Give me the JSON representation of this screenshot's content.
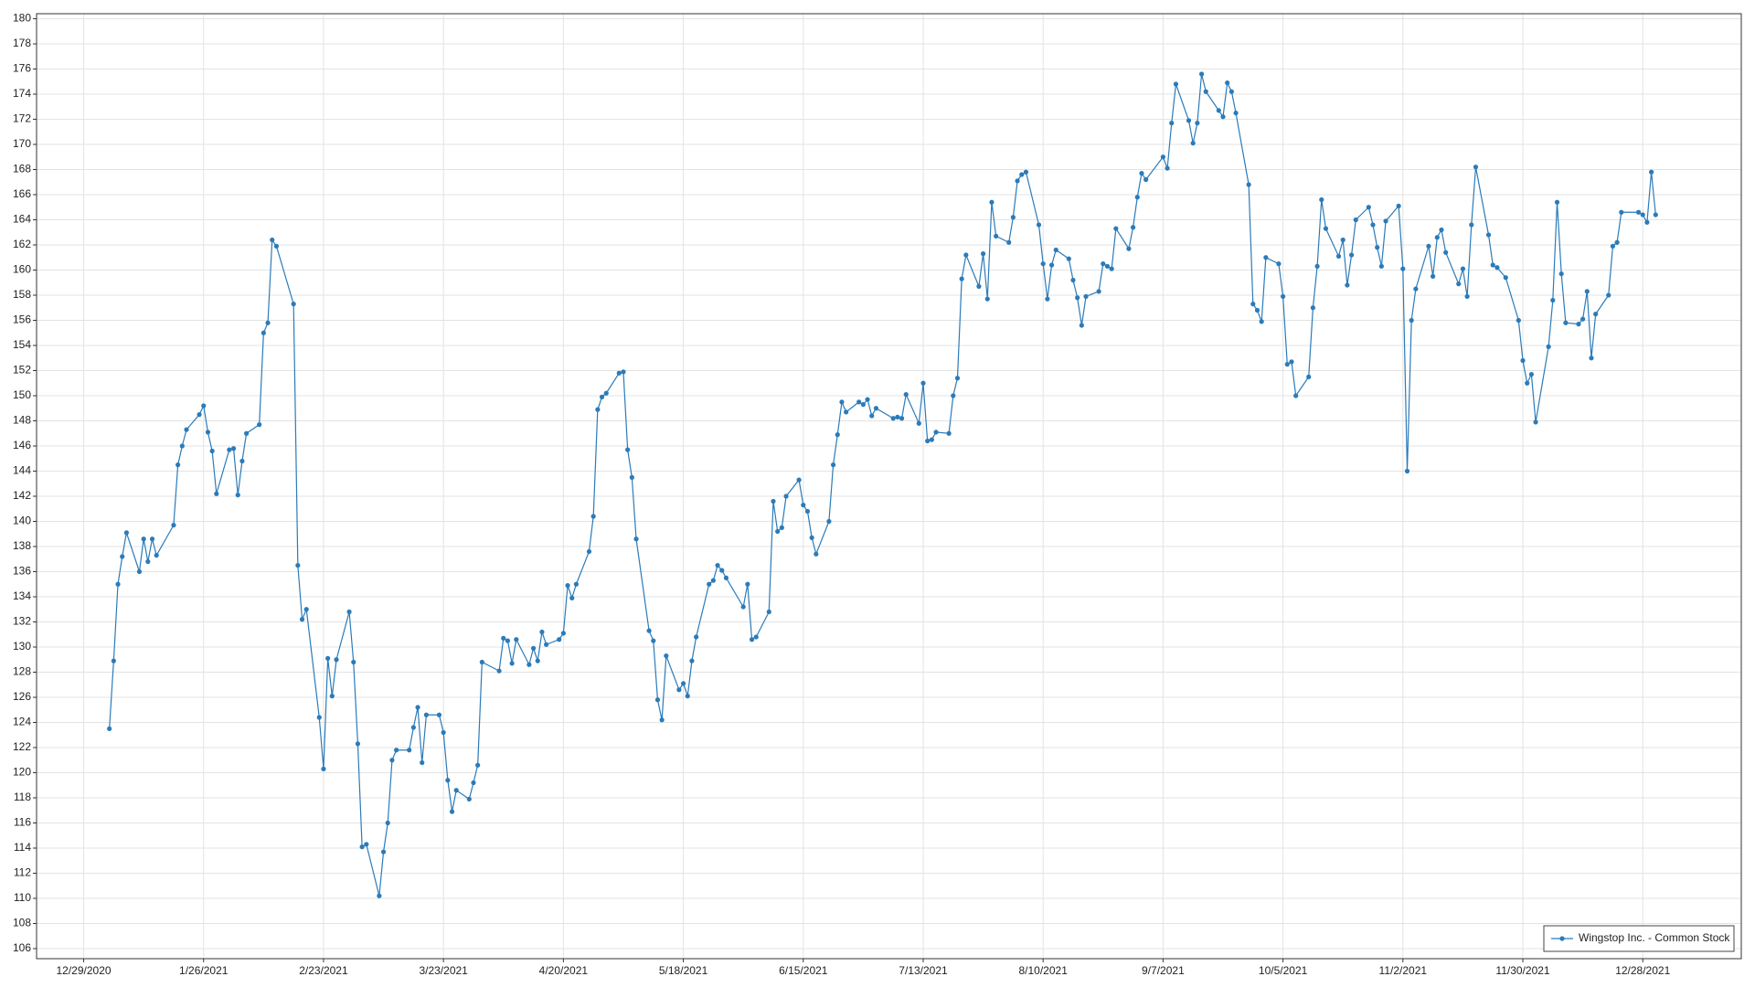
{
  "chart_data": {
    "type": "line",
    "x": [
      "1/4/2021",
      "1/5/2021",
      "1/6/2021",
      "1/7/2021",
      "1/8/2021",
      "1/11/2021",
      "1/12/2021",
      "1/13/2021",
      "1/14/2021",
      "1/15/2021",
      "1/19/2021",
      "1/20/2021",
      "1/21/2021",
      "1/22/2021",
      "1/25/2021",
      "1/26/2021",
      "1/27/2021",
      "1/28/2021",
      "1/29/2021",
      "2/1/2021",
      "2/2/2021",
      "2/3/2021",
      "2/4/2021",
      "2/5/2021",
      "2/8/2021",
      "2/9/2021",
      "2/10/2021",
      "2/11/2021",
      "2/12/2021",
      "2/16/2021",
      "2/17/2021",
      "2/18/2021",
      "2/19/2021",
      "2/22/2021",
      "2/23/2021",
      "2/24/2021",
      "2/25/2021",
      "2/26/2021",
      "3/1/2021",
      "3/2/2021",
      "3/3/2021",
      "3/4/2021",
      "3/5/2021",
      "3/8/2021",
      "3/9/2021",
      "3/10/2021",
      "3/11/2021",
      "3/12/2021",
      "3/15/2021",
      "3/16/2021",
      "3/17/2021",
      "3/18/2021",
      "3/19/2021",
      "3/22/2021",
      "3/23/2021",
      "3/24/2021",
      "3/25/2021",
      "3/26/2021",
      "3/29/2021",
      "3/30/2021",
      "3/31/2021",
      "4/1/2021",
      "4/5/2021",
      "4/6/2021",
      "4/7/2021",
      "4/8/2021",
      "4/9/2021",
      "4/12/2021",
      "4/13/2021",
      "4/14/2021",
      "4/15/2021",
      "4/16/2021",
      "4/19/2021",
      "4/20/2021",
      "4/21/2021",
      "4/22/2021",
      "4/23/2021",
      "4/26/2021",
      "4/27/2021",
      "4/28/2021",
      "4/29/2021",
      "4/30/2021",
      "5/3/2021",
      "5/4/2021",
      "5/5/2021",
      "5/6/2021",
      "5/7/2021",
      "5/10/2021",
      "5/11/2021",
      "5/12/2021",
      "5/13/2021",
      "5/14/2021",
      "5/17/2021",
      "5/18/2021",
      "5/19/2021",
      "5/20/2021",
      "5/21/2021",
      "5/24/2021",
      "5/25/2021",
      "5/26/2021",
      "5/27/2021",
      "5/28/2021",
      "6/1/2021",
      "6/2/2021",
      "6/3/2021",
      "6/4/2021",
      "6/7/2021",
      "6/8/2021",
      "6/9/2021",
      "6/10/2021",
      "6/11/2021",
      "6/14/2021",
      "6/15/2021",
      "6/16/2021",
      "6/17/2021",
      "6/18/2021",
      "6/21/2021",
      "6/22/2021",
      "6/23/2021",
      "6/24/2021",
      "6/25/2021",
      "6/28/2021",
      "6/29/2021",
      "6/30/2021",
      "7/1/2021",
      "7/2/2021",
      "7/6/2021",
      "7/7/2021",
      "7/8/2021",
      "7/9/2021",
      "7/12/2021",
      "7/13/2021",
      "7/14/2021",
      "7/15/2021",
      "7/16/2021",
      "7/19/2021",
      "7/20/2021",
      "7/21/2021",
      "7/22/2021",
      "7/23/2021",
      "7/26/2021",
      "7/27/2021",
      "7/28/2021",
      "7/29/2021",
      "7/30/2021",
      "8/2/2021",
      "8/3/2021",
      "8/4/2021",
      "8/5/2021",
      "8/6/2021",
      "8/9/2021",
      "8/10/2021",
      "8/11/2021",
      "8/12/2021",
      "8/13/2021",
      "8/16/2021",
      "8/17/2021",
      "8/18/2021",
      "8/19/2021",
      "8/20/2021",
      "8/23/2021",
      "8/24/2021",
      "8/25/2021",
      "8/26/2021",
      "8/27/2021",
      "8/30/2021",
      "8/31/2021",
      "9/1/2021",
      "9/2/2021",
      "9/3/2021",
      "9/7/2021",
      "9/8/2021",
      "9/9/2021",
      "9/10/2021",
      "9/13/2021",
      "9/14/2021",
      "9/15/2021",
      "9/16/2021",
      "9/17/2021",
      "9/20/2021",
      "9/21/2021",
      "9/22/2021",
      "9/23/2021",
      "9/24/2021",
      "9/27/2021",
      "9/28/2021",
      "9/29/2021",
      "9/30/2021",
      "10/1/2021",
      "10/4/2021",
      "10/5/2021",
      "10/6/2021",
      "10/7/2021",
      "10/8/2021",
      "10/11/2021",
      "10/12/2021",
      "10/13/2021",
      "10/14/2021",
      "10/15/2021",
      "10/18/2021",
      "10/19/2021",
      "10/20/2021",
      "10/21/2021",
      "10/22/2021",
      "10/25/2021",
      "10/26/2021",
      "10/27/2021",
      "10/28/2021",
      "10/29/2021",
      "11/1/2021",
      "11/2/2021",
      "11/3/2021",
      "11/4/2021",
      "11/5/2021",
      "11/8/2021",
      "11/9/2021",
      "11/10/2021",
      "11/11/2021",
      "11/12/2021",
      "11/15/2021",
      "11/16/2021",
      "11/17/2021",
      "11/18/2021",
      "11/19/2021",
      "11/22/2021",
      "11/23/2021",
      "11/24/2021",
      "11/26/2021",
      "11/29/2021",
      "11/30/2021",
      "12/1/2021",
      "12/2/2021",
      "12/3/2021",
      "12/6/2021",
      "12/7/2021",
      "12/8/2021",
      "12/9/2021",
      "12/10/2021",
      "12/13/2021",
      "12/14/2021",
      "12/15/2021",
      "12/16/2021",
      "12/17/2021",
      "12/20/2021",
      "12/21/2021",
      "12/22/2021",
      "12/23/2021",
      "12/27/2021",
      "12/28/2021",
      "12/29/2021",
      "12/30/2021",
      "12/31/2021"
    ],
    "series": [
      {
        "name": "Wingstop Inc. - Common Stock",
        "color": "#2b7bb9",
        "values": [
          123.5,
          128.9,
          135,
          137.2,
          139.1,
          136,
          138.6,
          136.8,
          138.6,
          137.3,
          139.7,
          144.5,
          146,
          147.3,
          148.5,
          149.2,
          147.1,
          145.6,
          142.2,
          145.7,
          145.8,
          142.1,
          144.8,
          147,
          147.7,
          155,
          155.8,
          162.4,
          161.9,
          157.3,
          136.5,
          132.2,
          133,
          124.4,
          120.3,
          129.1,
          126.1,
          129,
          132.8,
          128.8,
          122.3,
          114.1,
          114.3,
          110.2,
          113.7,
          116,
          121,
          121.8,
          121.8,
          123.6,
          125.2,
          120.8,
          124.6,
          124.6,
          123.2,
          119.4,
          116.9,
          118.6,
          117.9,
          119.2,
          120.6,
          128.8,
          128.1,
          130.7,
          130.5,
          128.7,
          130.6,
          128.6,
          129.9,
          128.9,
          131.2,
          130.2,
          130.6,
          131.1,
          134.9,
          133.9,
          135,
          137.6,
          140.4,
          148.9,
          149.9,
          150.2,
          151.8,
          151.9,
          145.7,
          143.5,
          138.6,
          131.3,
          130.5,
          125.8,
          124.2,
          129.3,
          126.6,
          127.1,
          126.1,
          128.9,
          130.8,
          135,
          135.3,
          136.5,
          136.1,
          135.5,
          133.2,
          135,
          130.6,
          130.8,
          132.8,
          141.6,
          139.2,
          139.5,
          142,
          143.3,
          141.3,
          140.8,
          138.7,
          137.4,
          140,
          144.5,
          146.9,
          149.5,
          148.7,
          149.5,
          149.3,
          149.7,
          148.4,
          149,
          148.2,
          148.3,
          148.2,
          150.1,
          147.8,
          151,
          146.4,
          146.5,
          147.1,
          147,
          150,
          151.4,
          159.3,
          161.2,
          158.7,
          161.3,
          157.7,
          165.4,
          162.7,
          162.2,
          164.2,
          167.1,
          167.6,
          167.8,
          163.6,
          160.5,
          157.7,
          160.4,
          161.6,
          160.9,
          159.2,
          157.8,
          155.6,
          157.9,
          158.3,
          160.5,
          160.3,
          160.1,
          163.3,
          161.7,
          163.4,
          165.8,
          167.7,
          167.2,
          169,
          168.1,
          171.7,
          174.8,
          171.9,
          170.1,
          171.7,
          175.6,
          174.2,
          172.7,
          172.2,
          174.9,
          174.2,
          172.5,
          166.8,
          157.3,
          156.8,
          155.9,
          161,
          160.5,
          157.9,
          152.5,
          152.7,
          150,
          151.5,
          157,
          160.3,
          165.6,
          163.3,
          161.1,
          162.4,
          158.8,
          161.2,
          164,
          165,
          163.6,
          161.8,
          160.3,
          163.9,
          165.1,
          160.1,
          144,
          156,
          158.5,
          161.9,
          159.5,
          162.6,
          163.2,
          161.4,
          158.9,
          160.1,
          157.9,
          163.6,
          168.2,
          162.8,
          160.4,
          160.2,
          159.4,
          156,
          152.8,
          151,
          151.7,
          147.9,
          153.9,
          157.6,
          165.4,
          159.7,
          155.8,
          155.7,
          156.1,
          158.3,
          153,
          156.5,
          158,
          161.9,
          162.2,
          164.6,
          164.6,
          164.4,
          163.8,
          167.8,
          164.4
        ]
      }
    ],
    "xlim": [
      "12/18/2020",
      "1/20/2022"
    ],
    "xticks": [
      "12/29/2020",
      "1/26/2021",
      "2/23/2021",
      "3/23/2021",
      "4/20/2021",
      "5/18/2021",
      "6/15/2021",
      "7/13/2021",
      "8/10/2021",
      "9/7/2021",
      "10/5/2021",
      "11/2/2021",
      "11/30/2021",
      "12/28/2021"
    ],
    "ylim": [
      105.2,
      180.4
    ],
    "yticks": [
      106,
      108,
      110,
      112,
      114,
      116,
      118,
      120,
      122,
      124,
      126,
      128,
      130,
      132,
      134,
      136,
      138,
      140,
      142,
      144,
      146,
      148,
      150,
      152,
      154,
      156,
      158,
      160,
      162,
      164,
      166,
      168,
      170,
      172,
      174,
      176,
      178,
      180
    ],
    "grid": true,
    "legend": "lower right"
  }
}
